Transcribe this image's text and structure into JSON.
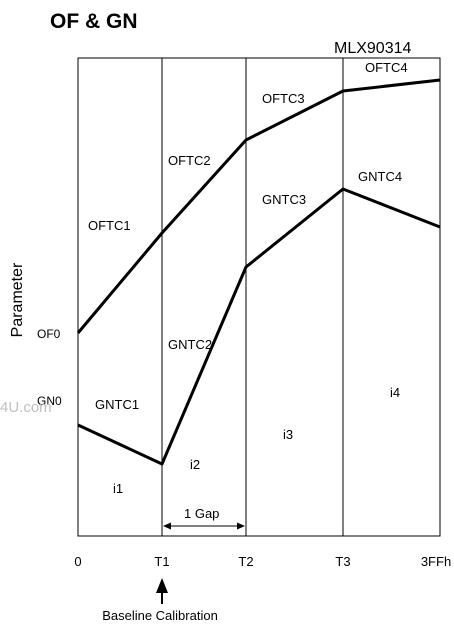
{
  "title": "OF & GN",
  "device": "MLX90314",
  "y_axis_label": "Parameter",
  "x_ticks": [
    "0",
    "T1",
    "T2",
    "T3",
    "3FFh"
  ],
  "start_labels": {
    "of": "OF0",
    "gn": "GN0"
  },
  "segment_labels": {
    "oftc": [
      "OFTC1",
      "OFTC2",
      "OFTC3",
      "OFTC4"
    ],
    "gntc": [
      "GNTC1",
      "GNTC2",
      "GNTC3",
      "GNTC4"
    ],
    "intervals": [
      "i1",
      "i2",
      "i3",
      "i4"
    ]
  },
  "gap_label": "1 Gap",
  "baseline_label": "Baseline Calibration",
  "watermark": "4U.com"
}
